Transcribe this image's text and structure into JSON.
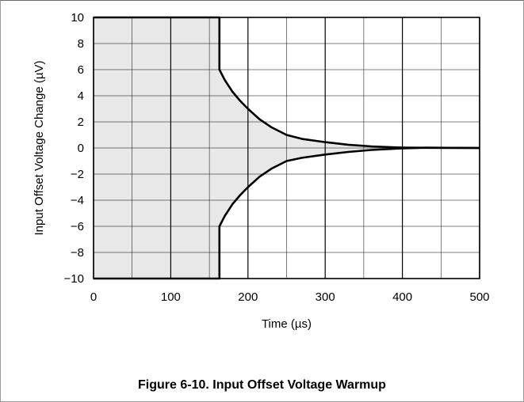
{
  "chart_data": {
    "type": "line",
    "title": "",
    "xlabel": "Time (µs)",
    "ylabel": "Input Offset Voltage Change (µV)",
    "xlim": [
      0,
      500
    ],
    "ylim": [
      -10,
      10
    ],
    "x_ticks": [
      0,
      100,
      200,
      300,
      400,
      500
    ],
    "y_ticks": [
      10,
      8,
      6,
      4,
      2,
      0,
      -2,
      -4,
      -6,
      -8,
      -10
    ],
    "x_tick_labels": [
      "0",
      "100",
      "200",
      "300",
      "400",
      "500"
    ],
    "y_tick_labels": [
      "10",
      "8",
      "6",
      "4",
      "2",
      "0",
      "−2",
      "−4",
      "−6",
      "−8",
      "−10"
    ],
    "grid": true,
    "shaded_region": "between upper and lower envelope",
    "series": [
      {
        "role": "upper-envelope",
        "x": [
          0,
          163,
          163,
          170,
          180,
          190,
          200,
          215,
          230,
          250,
          270,
          300,
          330,
          360,
          400,
          430,
          460,
          500
        ],
        "y": [
          10,
          10,
          6,
          5.2,
          4.3,
          3.6,
          3.0,
          2.2,
          1.6,
          1.0,
          0.7,
          0.45,
          0.25,
          0.12,
          0.03,
          0.02,
          0.01,
          0
        ]
      },
      {
        "role": "lower-envelope",
        "x": [
          0,
          163,
          163,
          170,
          180,
          190,
          200,
          215,
          230,
          250,
          270,
          300,
          330,
          360,
          400,
          430,
          460,
          500
        ],
        "y": [
          -10,
          -10,
          -6,
          -5.2,
          -4.3,
          -3.6,
          -3.0,
          -2.2,
          -1.6,
          -1.0,
          -0.75,
          -0.5,
          -0.3,
          -0.15,
          -0.03,
          0.02,
          0.01,
          0
        ]
      }
    ],
    "colors": {
      "fill": "#e8e8e8",
      "line": "#000000",
      "grid": "#000000",
      "border": "#000000"
    }
  },
  "caption": "Figure 6-10. Input Offset Voltage Warmup"
}
